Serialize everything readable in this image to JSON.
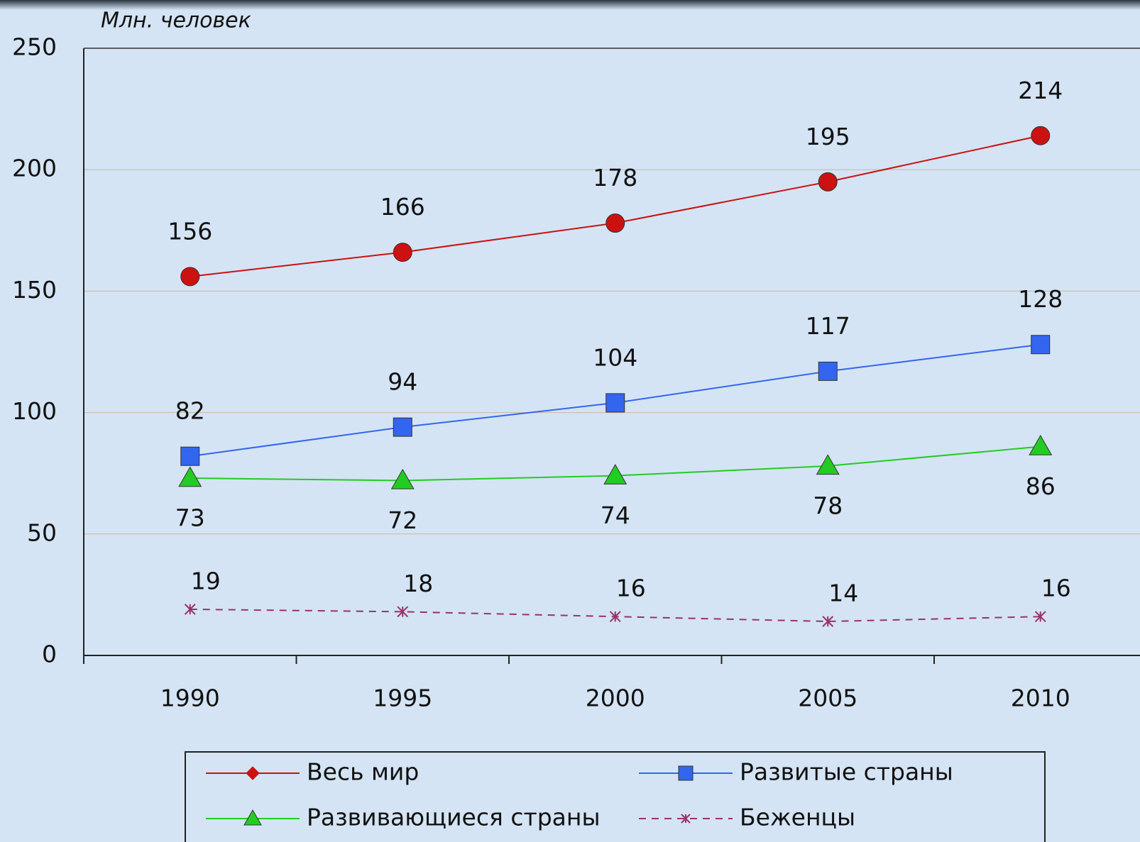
{
  "chart_data": {
    "type": "line",
    "ylabel": "Млн. человек",
    "categories": [
      "1990",
      "1995",
      "2000",
      "2005",
      "2010"
    ],
    "ylim": [
      0,
      250
    ],
    "yticks": [
      0,
      50,
      100,
      150,
      200,
      250
    ],
    "grid": true,
    "series": [
      {
        "name": "Весь мир",
        "color": "#cc1111",
        "marker": "circle",
        "values": [
          156,
          166,
          178,
          195,
          214
        ]
      },
      {
        "name": "Развитые страны",
        "color": "#3366ee",
        "marker": "square",
        "values": [
          82,
          94,
          104,
          117,
          128
        ]
      },
      {
        "name": "Развивающиеся страны",
        "color": "#22cc22",
        "marker": "triangle",
        "values": [
          73,
          72,
          74,
          78,
          86
        ]
      },
      {
        "name": "Беженцы",
        "color": "#993366",
        "marker": "star",
        "dashed": true,
        "values": [
          19,
          18,
          16,
          14,
          16
        ]
      }
    ]
  }
}
